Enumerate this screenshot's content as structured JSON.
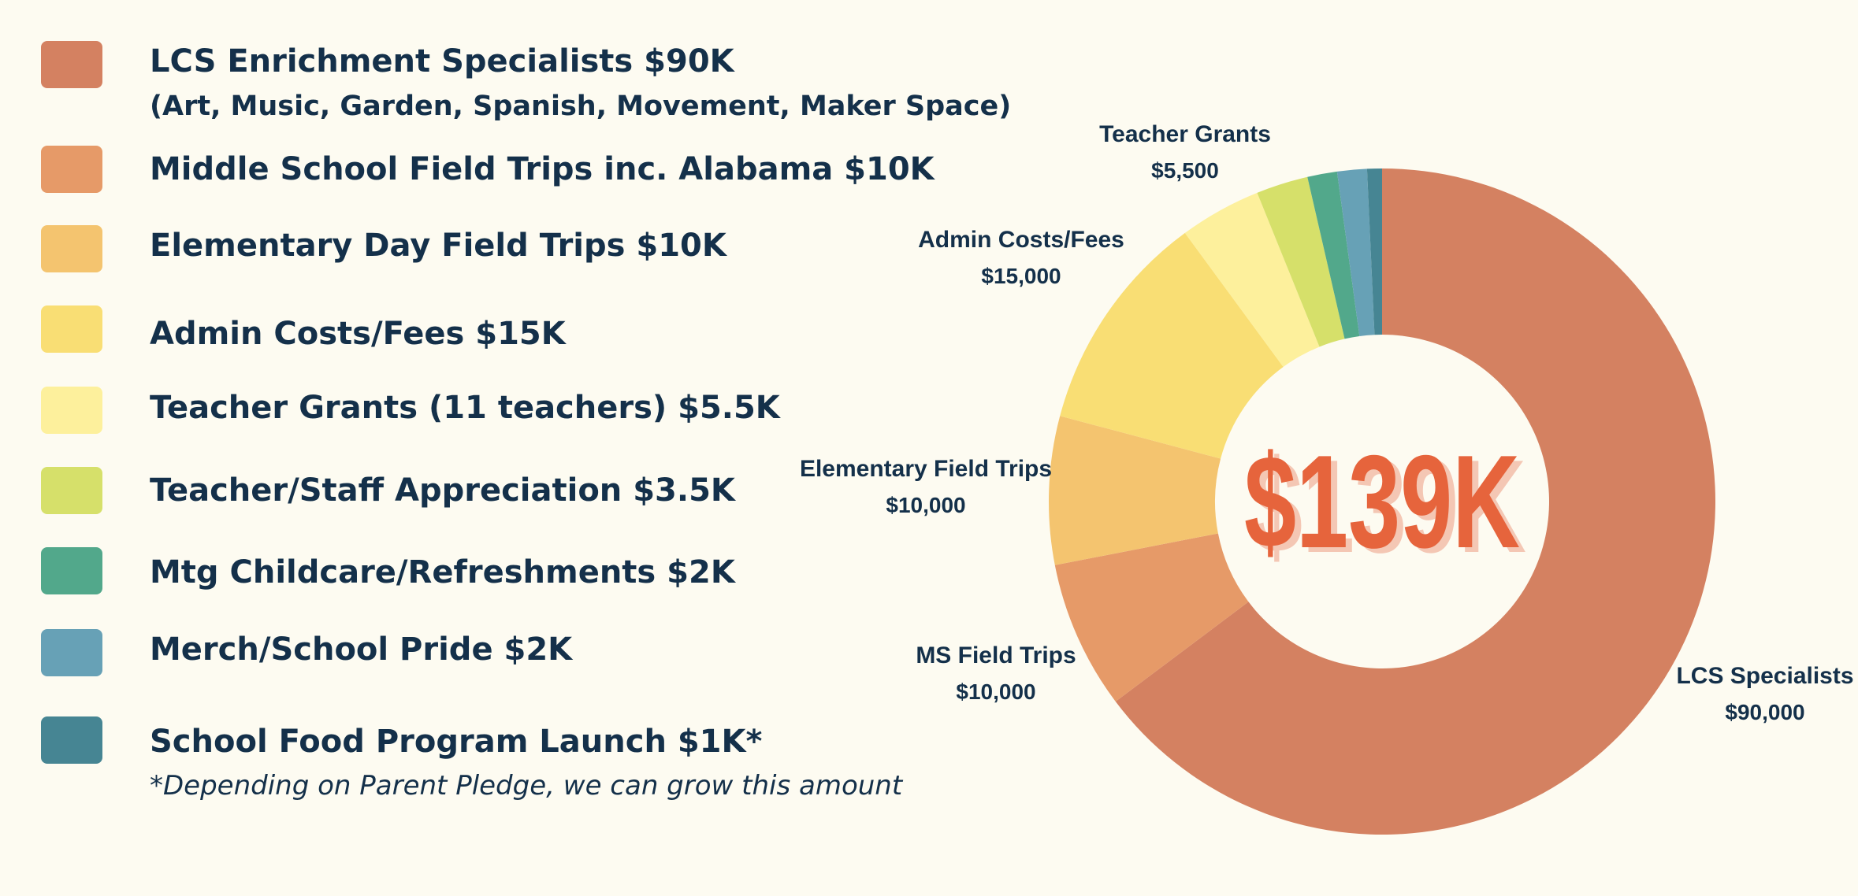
{
  "legend": {
    "items": [
      {
        "label": "LCS Enrichment Specialists $90K",
        "sublabel": "(Art, Music, Garden, Spanish, Movement, Maker Space)",
        "color": "#d48161"
      },
      {
        "label": "Middle School Field Trips inc. Alabama $10K",
        "color": "#e69a68"
      },
      {
        "label": "Elementary Day Field Trips $10K",
        "color": "#f4c46f"
      },
      {
        "label": "Admin Costs/Fees $15K",
        "color": "#f9de74"
      },
      {
        "label": "Teacher Grants (11 teachers) $5.5K",
        "color": "#fdf09c"
      },
      {
        "label": "Teacher/Staff Appreciation $3.5K",
        "color": "#d6e06a"
      },
      {
        "label": "Mtg Childcare/Refreshments $2K",
        "color": "#52a88b"
      },
      {
        "label": "Merch/School Pride $2K",
        "color": "#67a1b6"
      },
      {
        "label": "School Food Program Launch $1K*",
        "note": "*Depending on Parent Pledge, we can grow this amount",
        "color": "#468593"
      }
    ]
  },
  "chart_data": {
    "type": "pie",
    "style": "donut",
    "center_label": "$139K",
    "center_color": "#e6643c",
    "slices": [
      {
        "name": "LCS Specialists",
        "value": 90000,
        "label_value": "$90,000",
        "color": "#d48161"
      },
      {
        "name": "MS Field Trips",
        "value": 10000,
        "label_value": "$10,000",
        "color": "#e69a68"
      },
      {
        "name": "Elementary Field Trips",
        "value": 10000,
        "label_value": "$10,000",
        "color": "#f4c46f"
      },
      {
        "name": "Admin Costs/Fees",
        "value": 15000,
        "label_value": "$15,000",
        "color": "#f9de74"
      },
      {
        "name": "Teacher Grants",
        "value": 5500,
        "label_value": "$5,500",
        "color": "#fdf09c"
      },
      {
        "name": "",
        "value": 3500,
        "label_value": "",
        "color": "#d6e06a"
      },
      {
        "name": "",
        "value": 2000,
        "label_value": "",
        "color": "#52a88b"
      },
      {
        "name": "",
        "value": 2000,
        "label_value": "",
        "color": "#67a1b6"
      },
      {
        "name": "",
        "value": 1000,
        "label_value": "",
        "color": "#468593"
      }
    ]
  }
}
